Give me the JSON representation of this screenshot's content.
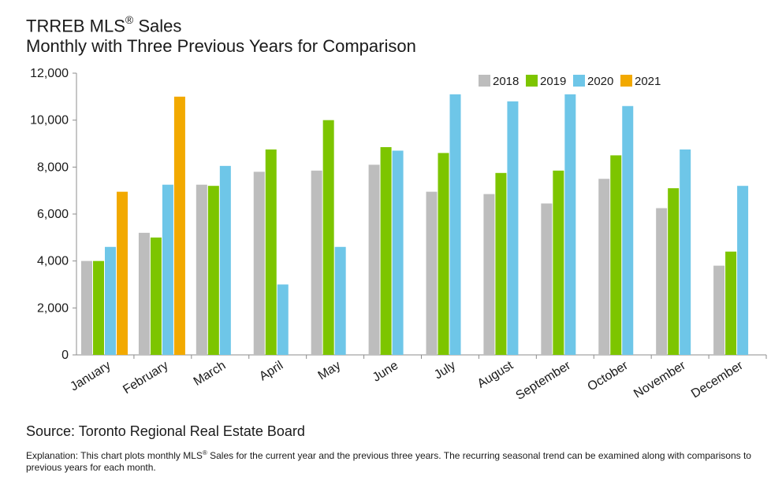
{
  "header": {
    "title_text": "TRREB MLS",
    "title_sup": "®",
    "title_suffix": " Sales",
    "subtitle": "Monthly with Three Previous Years for Comparison"
  },
  "footer": {
    "source": "Source: Toronto Regional Real Estate Board",
    "explanation_prefix": "Explanation: This chart plots monthly MLS",
    "explanation_sup": "®",
    "explanation_suffix": " Sales for the current year and the previous three years. The recurring seasonal trend can be examined along with comparisons to previous years for each month."
  },
  "chart_data": {
    "type": "bar",
    "categories": [
      "January",
      "February",
      "March",
      "April",
      "May",
      "June",
      "July",
      "August",
      "September",
      "October",
      "November",
      "December"
    ],
    "series": [
      {
        "name": "2018",
        "color": "#bdbdbd",
        "values": [
          4000,
          5200,
          7250,
          7800,
          7850,
          8100,
          6950,
          6850,
          6450,
          7500,
          6250,
          3800
        ]
      },
      {
        "name": "2019",
        "color": "#7dc500",
        "values": [
          4000,
          5000,
          7200,
          8750,
          10000,
          8850,
          8600,
          7750,
          7850,
          8500,
          7100,
          4400
        ]
      },
      {
        "name": "2020",
        "color": "#6ec6e8",
        "values": [
          4600,
          7250,
          8050,
          3000,
          4600,
          8700,
          11100,
          10800,
          11100,
          10600,
          8750,
          7200
        ]
      },
      {
        "name": "2021",
        "color": "#f2a900",
        "values": [
          6950,
          11000,
          null,
          null,
          null,
          null,
          null,
          null,
          null,
          null,
          null,
          null
        ]
      }
    ],
    "ylim": [
      0,
      12000
    ],
    "yticks": [
      0,
      2000,
      4000,
      6000,
      8000,
      10000,
      12000
    ],
    "ytick_labels": [
      "0",
      "2,000",
      "4,000",
      "6,000",
      "8,000",
      "10,000",
      "12,000"
    ],
    "legend_position": "top-right",
    "grid": false
  }
}
